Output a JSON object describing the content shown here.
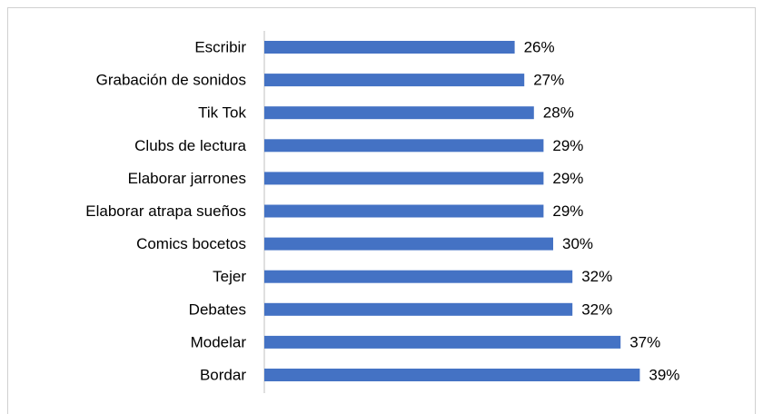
{
  "chart_data": {
    "type": "bar",
    "orientation": "horizontal",
    "categories": [
      "Escribir",
      "Grabación de sonidos",
      "Tik Tok",
      "Clubs de lectura",
      "Elaborar jarrones",
      "Elaborar atrapa sueños",
      "Comics bocetos",
      "Tejer",
      "Debates",
      "Modelar",
      "Bordar"
    ],
    "values": [
      26,
      27,
      28,
      29,
      29,
      29,
      30,
      32,
      32,
      37,
      39
    ],
    "value_labels": [
      "26%",
      "27%",
      "28%",
      "29%",
      "29%",
      "29%",
      "30%",
      "32%",
      "32%",
      "37%",
      "39%"
    ],
    "color": "#4472c4"
  }
}
